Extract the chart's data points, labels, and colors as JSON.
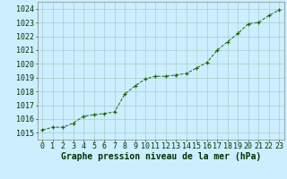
{
  "x": [
    0,
    1,
    2,
    3,
    4,
    5,
    6,
    7,
    8,
    9,
    10,
    11,
    12,
    13,
    14,
    15,
    16,
    17,
    18,
    19,
    20,
    21,
    22,
    23
  ],
  "y": [
    1015.2,
    1015.4,
    1015.4,
    1015.7,
    1016.2,
    1016.3,
    1016.4,
    1016.5,
    1017.8,
    1018.4,
    1018.9,
    1019.1,
    1019.1,
    1019.2,
    1019.3,
    1019.7,
    1020.1,
    1021.0,
    1021.6,
    1022.2,
    1022.9,
    1023.0,
    1023.5,
    1023.9
  ],
  "ylim": [
    1014.5,
    1024.5
  ],
  "yticks": [
    1015,
    1016,
    1017,
    1018,
    1019,
    1020,
    1021,
    1022,
    1023,
    1024
  ],
  "xticks": [
    0,
    1,
    2,
    3,
    4,
    5,
    6,
    7,
    8,
    9,
    10,
    11,
    12,
    13,
    14,
    15,
    16,
    17,
    18,
    19,
    20,
    21,
    22,
    23
  ],
  "line_color": "#1a6600",
  "marker_color": "#1a6600",
  "bg_color": "#cceeff",
  "grid_color": "#aacccc",
  "xlabel": "Graphe pression niveau de la mer (hPa)",
  "xlabel_color": "#003300",
  "xlabel_fontsize": 7,
  "tick_fontsize": 6,
  "figsize": [
    3.2,
    2.0
  ],
  "dpi": 100
}
